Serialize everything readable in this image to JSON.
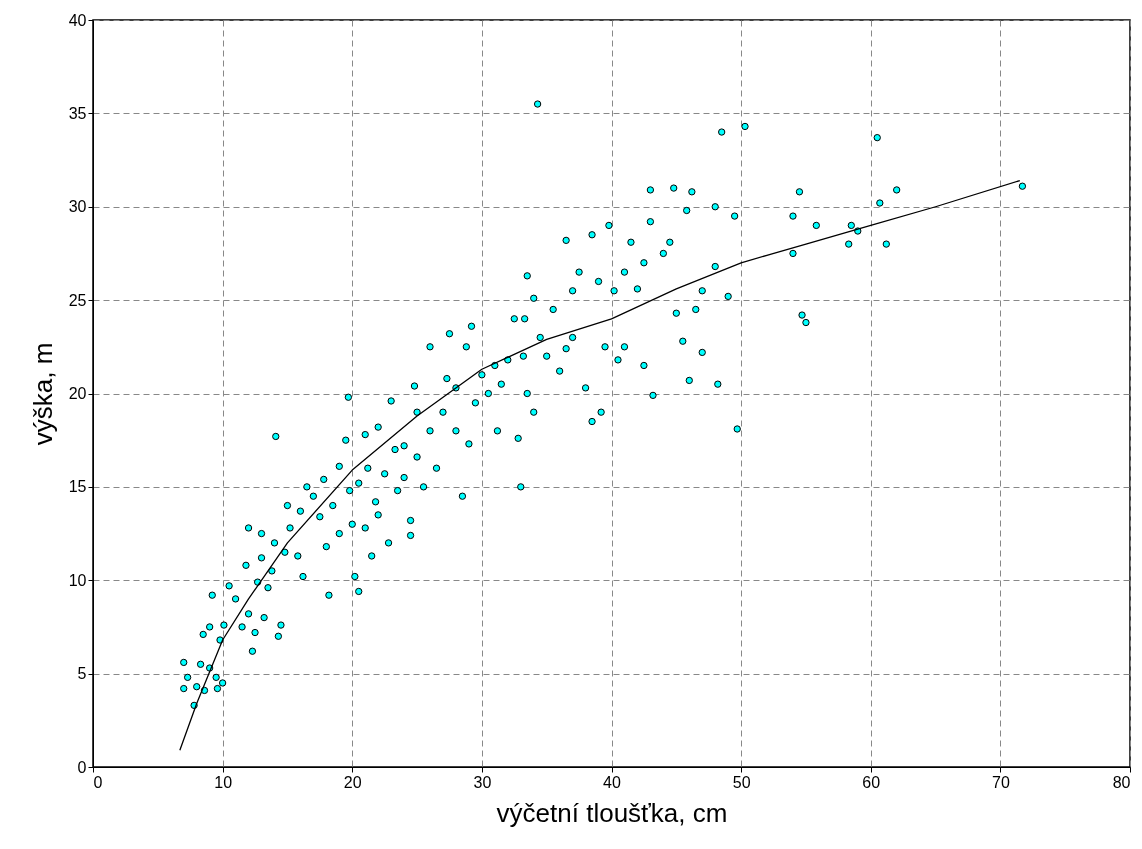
{
  "chart_data": {
    "type": "scatter",
    "xlabel": "výčetní tloušťka, cm",
    "ylabel": "výška, m",
    "xlim": [
      0,
      80
    ],
    "ylim": [
      0,
      40
    ],
    "xticks": [
      0,
      10,
      20,
      30,
      40,
      50,
      60,
      70,
      80
    ],
    "yticks": [
      0,
      5,
      10,
      15,
      20,
      25,
      30,
      35,
      40
    ],
    "grid": true,
    "series": [
      {
        "color": "#00ffff",
        "marker": "circle",
        "x": [
          7,
          7,
          7.3,
          7.8,
          8,
          8.3,
          8.6,
          8.5,
          9,
          9,
          9.2,
          9.5,
          9.6,
          9.8,
          10,
          10.1,
          10.5,
          11,
          11.5,
          11.8,
          12,
          12,
          12.3,
          12.5,
          12.7,
          13,
          13,
          13.2,
          13.5,
          13.8,
          14.1,
          14,
          14.3,
          14.5,
          14.8,
          15,
          15.2,
          15.8,
          16,
          16.5,
          16.2,
          17,
          17.5,
          17.8,
          18,
          18.2,
          18.5,
          19,
          19,
          19.5,
          19.7,
          19.8,
          20,
          20.2,
          20.5,
          20.5,
          21,
          21,
          21.2,
          21.5,
          21.8,
          22,
          22,
          22.5,
          22.8,
          23,
          23.3,
          23.5,
          24,
          24,
          24.5,
          24.5,
          24.8,
          25,
          25,
          25.5,
          26,
          26,
          26.5,
          27,
          27.3,
          27.5,
          28,
          28,
          28.5,
          28.8,
          29,
          29.2,
          29.5,
          30,
          30.5,
          31,
          31.2,
          31.5,
          32,
          32.5,
          32.8,
          33,
          33.2,
          33.3,
          33.5,
          33.5,
          34,
          34,
          34.3,
          34.5,
          35,
          35.5,
          36,
          36.5,
          36.5,
          37,
          37,
          37.5,
          38,
          38.5,
          38.5,
          39,
          39.2,
          39.5,
          39.8,
          40.2,
          40.5,
          41,
          41,
          41.5,
          42,
          42.5,
          42.5,
          43,
          43,
          43.2,
          44,
          44.5,
          44.8,
          45,
          45.5,
          45.8,
          46,
          46.2,
          46.5,
          47,
          47,
          48,
          48,
          48.2,
          48.5,
          49,
          49.5,
          49.7,
          50.3,
          54,
          54,
          54.5,
          54.7,
          55,
          55.8,
          58.3,
          58.5,
          59,
          60.5,
          60.7,
          61.2,
          62,
          71.7
        ],
        "values": [
          5.6,
          4.2,
          4.8,
          3.3,
          4.3,
          5.5,
          4.1,
          7.1,
          7.5,
          5.3,
          9.2,
          4.8,
          4.2,
          6.8,
          4.5,
          7.6,
          9.7,
          9.0,
          7.5,
          10.8,
          12.8,
          8.2,
          6.2,
          7.2,
          9.9,
          12.5,
          11.2,
          8.0,
          9.6,
          10.5,
          17.7,
          12.0,
          7.0,
          7.6,
          11.5,
          14.0,
          12.8,
          11.3,
          13.7,
          15.0,
          10.2,
          14.5,
          13.4,
          15.4,
          11.8,
          9.2,
          14.0,
          16.1,
          12.5,
          17.5,
          19.8,
          14.8,
          13.0,
          10.2,
          15.2,
          9.4,
          17.8,
          12.8,
          16.0,
          11.3,
          14.2,
          18.2,
          13.5,
          15.7,
          12.0,
          19.6,
          17.0,
          14.8,
          17.2,
          15.5,
          13.2,
          12.4,
          20.4,
          19.0,
          16.6,
          15.0,
          22.5,
          18.0,
          16.0,
          19.0,
          20.8,
          23.2,
          20.3,
          18.0,
          14.5,
          22.5,
          17.3,
          23.6,
          19.5,
          21.0,
          20.0,
          21.5,
          18.0,
          20.5,
          21.8,
          24.0,
          17.6,
          15.0,
          22.0,
          24.0,
          26.3,
          20.0,
          25.1,
          19.0,
          35.5,
          23.0,
          22.0,
          24.5,
          21.2,
          28.2,
          22.4,
          25.5,
          23.0,
          26.5,
          20.3,
          18.5,
          28.5,
          26.0,
          19.0,
          22.5,
          29.0,
          25.5,
          21.8,
          26.5,
          22.5,
          28.1,
          25.6,
          27.0,
          21.5,
          30.9,
          29.2,
          19.9,
          27.5,
          28.1,
          31.0,
          24.3,
          22.8,
          29.8,
          20.7,
          30.8,
          24.5,
          25.5,
          22.2,
          30.0,
          26.8,
          20.5,
          34.0,
          25.2,
          29.5,
          18.1,
          34.3,
          27.5,
          29.5,
          30.8,
          24.2,
          23.8,
          29.0,
          28.0,
          29.0,
          28.7,
          33.7,
          30.2,
          28.0,
          30.9,
          31.1
        ]
      },
      {
        "type": "line",
        "color": "#000000",
        "x": [
          6.7,
          8,
          10,
          12,
          15,
          20,
          25,
          30,
          35,
          40,
          45,
          50,
          55,
          60,
          65,
          71.5
        ],
        "values": [
          0.9,
          3.4,
          6.8,
          9.0,
          12.0,
          15.9,
          18.8,
          21.3,
          22.9,
          24.0,
          25.6,
          27.0,
          28.0,
          29.0,
          30.0,
          31.4
        ]
      }
    ]
  }
}
